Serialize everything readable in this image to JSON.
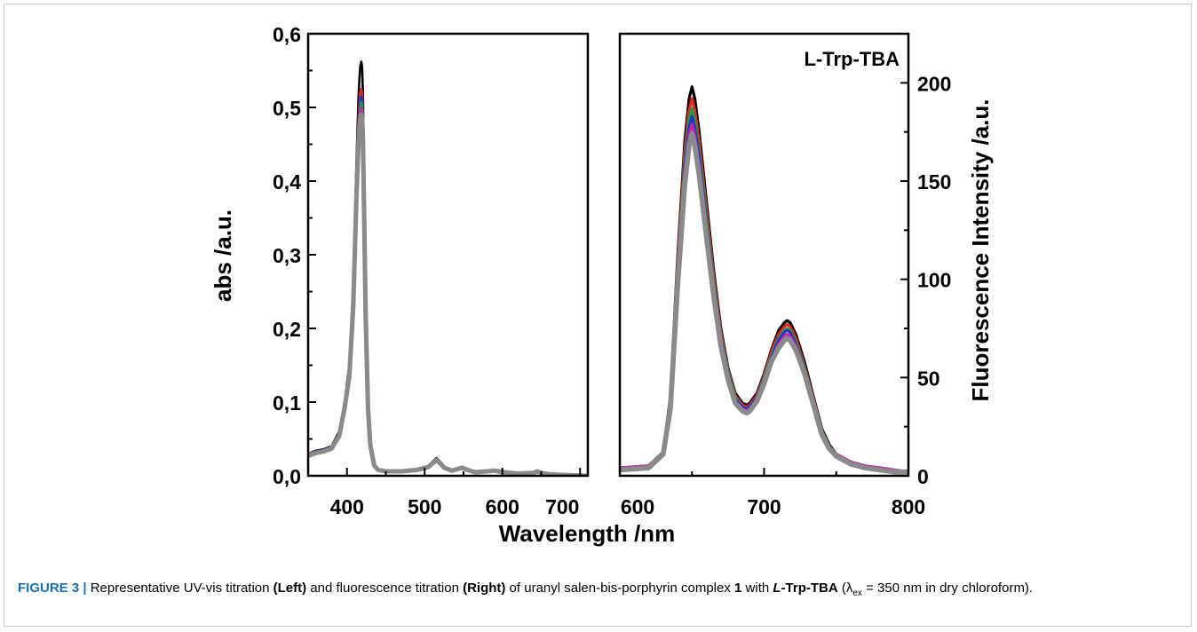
{
  "chart_data": [
    {
      "type": "line",
      "panel": "left",
      "xlabel": "Wavelength /nm",
      "ylabel": "abs /a.u.",
      "xlim": [
        350,
        710
      ],
      "ylim": [
        0,
        0.6
      ],
      "x_ticks": [
        "400",
        "500",
        "600",
        "700"
      ],
      "y_ticks": [
        "0,0",
        "0,1",
        "0,2",
        "0,3",
        "0,4",
        "0,5",
        "0,6"
      ],
      "grid": false,
      "series": [
        {
          "color": "#000000",
          "x": [
            350,
            360,
            370,
            380,
            390,
            397,
            403,
            408,
            412,
            415,
            417,
            418.5,
            419.5,
            420.5,
            422,
            424,
            427,
            430,
            435,
            440,
            450,
            470,
            490,
            505,
            510,
            515,
            520,
            525,
            535,
            542,
            548,
            555,
            565,
            580,
            590,
            600,
            620,
            640,
            645,
            650,
            660,
            680,
            710
          ],
          "y": [
            0.03,
            0.034,
            0.036,
            0.04,
            0.06,
            0.1,
            0.15,
            0.26,
            0.42,
            0.52,
            0.555,
            0.562,
            0.555,
            0.52,
            0.4,
            0.24,
            0.1,
            0.045,
            0.015,
            0.008,
            0.006,
            0.006,
            0.008,
            0.013,
            0.019,
            0.024,
            0.019,
            0.011,
            0.007,
            0.009,
            0.012,
            0.008,
            0.005,
            0.006,
            0.008,
            0.005,
            0.003,
            0.004,
            0.006,
            0.004,
            0.002,
            0.001,
            0.0
          ]
        },
        {
          "color": "#e8281e",
          "x": [
            350,
            360,
            370,
            380,
            390,
            397,
            403,
            408,
            412,
            415,
            417,
            418.5,
            419.5,
            420.5,
            422,
            424,
            427,
            430,
            435,
            440,
            450,
            470,
            490,
            505,
            510,
            515,
            520,
            525,
            535,
            542,
            548,
            555,
            565,
            580,
            590,
            600,
            620,
            640,
            645,
            650,
            660,
            680,
            710
          ],
          "y": [
            0.03,
            0.033,
            0.035,
            0.039,
            0.058,
            0.097,
            0.145,
            0.25,
            0.4,
            0.49,
            0.518,
            0.525,
            0.518,
            0.49,
            0.38,
            0.23,
            0.097,
            0.044,
            0.015,
            0.008,
            0.006,
            0.006,
            0.008,
            0.013,
            0.019,
            0.023,
            0.018,
            0.011,
            0.007,
            0.009,
            0.012,
            0.008,
            0.005,
            0.006,
            0.008,
            0.005,
            0.003,
            0.004,
            0.006,
            0.004,
            0.002,
            0.001,
            0.0
          ]
        },
        {
          "color": "#2233cc",
          "x": [
            350,
            360,
            370,
            380,
            390,
            397,
            403,
            408,
            412,
            415,
            417,
            418.5,
            419.5,
            420.5,
            422,
            424,
            427,
            430,
            435,
            440,
            450,
            470,
            490,
            505,
            510,
            515,
            520,
            525,
            535,
            542,
            548,
            555,
            565,
            580,
            590,
            600,
            620,
            640,
            645,
            650,
            660,
            680,
            710
          ],
          "y": [
            0.029,
            0.033,
            0.035,
            0.039,
            0.057,
            0.096,
            0.143,
            0.245,
            0.395,
            0.48,
            0.508,
            0.515,
            0.508,
            0.48,
            0.375,
            0.225,
            0.096,
            0.044,
            0.015,
            0.008,
            0.006,
            0.006,
            0.008,
            0.013,
            0.018,
            0.023,
            0.018,
            0.011,
            0.007,
            0.009,
            0.011,
            0.008,
            0.005,
            0.006,
            0.008,
            0.005,
            0.003,
            0.004,
            0.006,
            0.004,
            0.002,
            0.001,
            0.0
          ]
        },
        {
          "color": "#1e9e3c",
          "x": [
            350,
            360,
            370,
            380,
            390,
            397,
            403,
            408,
            412,
            415,
            417,
            418.5,
            419.5,
            420.5,
            422,
            424,
            427,
            430,
            435,
            440,
            450,
            470,
            490,
            505,
            510,
            515,
            520,
            525,
            535,
            542,
            548,
            555,
            565,
            580,
            590,
            600,
            620,
            640,
            645,
            650,
            660,
            680,
            710
          ],
          "y": [
            0.029,
            0.032,
            0.034,
            0.038,
            0.056,
            0.095,
            0.14,
            0.24,
            0.39,
            0.472,
            0.5,
            0.507,
            0.5,
            0.472,
            0.37,
            0.222,
            0.095,
            0.043,
            0.015,
            0.008,
            0.006,
            0.006,
            0.008,
            0.012,
            0.018,
            0.022,
            0.018,
            0.011,
            0.007,
            0.009,
            0.011,
            0.008,
            0.005,
            0.006,
            0.007,
            0.005,
            0.003,
            0.004,
            0.006,
            0.004,
            0.002,
            0.001,
            0.0
          ]
        },
        {
          "color": "#cc22aa",
          "x": [
            350,
            360,
            370,
            380,
            390,
            397,
            403,
            408,
            412,
            415,
            417,
            418.5,
            419.5,
            420.5,
            422,
            424,
            427,
            430,
            435,
            440,
            450,
            470,
            490,
            505,
            510,
            515,
            520,
            525,
            535,
            542,
            548,
            555,
            565,
            580,
            590,
            600,
            620,
            640,
            645,
            650,
            660,
            680,
            710
          ],
          "y": [
            0.028,
            0.032,
            0.034,
            0.038,
            0.055,
            0.094,
            0.138,
            0.235,
            0.382,
            0.465,
            0.492,
            0.499,
            0.492,
            0.465,
            0.365,
            0.22,
            0.094,
            0.043,
            0.015,
            0.008,
            0.006,
            0.006,
            0.008,
            0.012,
            0.018,
            0.022,
            0.018,
            0.011,
            0.007,
            0.009,
            0.011,
            0.008,
            0.005,
            0.006,
            0.007,
            0.005,
            0.003,
            0.004,
            0.006,
            0.004,
            0.002,
            0.001,
            0.0
          ]
        },
        {
          "color": "#8a8a8a",
          "x": [
            350,
            360,
            370,
            380,
            390,
            397,
            403,
            408,
            412,
            415,
            417,
            418.5,
            419.5,
            420.5,
            422,
            424,
            427,
            430,
            435,
            440,
            450,
            470,
            490,
            505,
            510,
            515,
            520,
            525,
            535,
            542,
            548,
            555,
            565,
            580,
            590,
            600,
            620,
            640,
            645,
            650,
            660,
            680,
            710
          ],
          "y": [
            0.027,
            0.031,
            0.033,
            0.037,
            0.054,
            0.092,
            0.135,
            0.23,
            0.375,
            0.458,
            0.485,
            0.49,
            0.485,
            0.458,
            0.36,
            0.218,
            0.092,
            0.042,
            0.014,
            0.008,
            0.006,
            0.006,
            0.008,
            0.012,
            0.017,
            0.021,
            0.017,
            0.011,
            0.007,
            0.009,
            0.011,
            0.008,
            0.005,
            0.006,
            0.007,
            0.005,
            0.003,
            0.004,
            0.006,
            0.004,
            0.002,
            0.001,
            0.0
          ]
        }
      ]
    },
    {
      "type": "line",
      "panel": "right",
      "xlabel": "Wavelength /nm",
      "ylabel": "Fluorescence Intensity /a.u.",
      "xlim": [
        600,
        800
      ],
      "ylim": [
        0,
        225
      ],
      "x_ticks": [
        "600",
        "700",
        "800"
      ],
      "y_ticks": [
        "0",
        "50",
        "100",
        "150",
        "200"
      ],
      "grid": false,
      "annotation": "L-Trp-TBA",
      "series": [
        {
          "color": "#000000",
          "x": [
            600,
            620,
            630,
            635,
            640,
            645,
            648,
            650,
            652,
            655,
            660,
            665,
            670,
            675,
            680,
            685,
            688,
            690,
            695,
            700,
            705,
            710,
            714,
            716,
            718,
            722,
            728,
            735,
            740,
            745,
            750,
            760,
            770,
            780,
            790,
            800
          ],
          "y": [
            4,
            5,
            12,
            40,
            110,
            170,
            192,
            198,
            192,
            175,
            140,
            105,
            75,
            55,
            42,
            37,
            36,
            37,
            42,
            52,
            64,
            74,
            78,
            79,
            78,
            72,
            58,
            38,
            24,
            16,
            11,
            7,
            5,
            4,
            3,
            2
          ]
        },
        {
          "color": "#e8281e",
          "x": [
            600,
            620,
            630,
            635,
            640,
            645,
            648,
            650,
            652,
            655,
            660,
            665,
            670,
            675,
            680,
            685,
            688,
            690,
            695,
            700,
            705,
            710,
            714,
            716,
            718,
            722,
            728,
            735,
            740,
            745,
            750,
            760,
            770,
            780,
            790,
            800
          ],
          "y": [
            4,
            5,
            12,
            39,
            107,
            165,
            186,
            192,
            186,
            170,
            136,
            102,
            73,
            54,
            41,
            36,
            35,
            36,
            41,
            51,
            63,
            72,
            76,
            77,
            76,
            70,
            56,
            37,
            23,
            15,
            11,
            7,
            5,
            4,
            3,
            2
          ]
        },
        {
          "color": "#1e9e3c",
          "x": [
            600,
            620,
            630,
            635,
            640,
            645,
            648,
            650,
            652,
            655,
            660,
            665,
            670,
            675,
            680,
            685,
            688,
            690,
            695,
            700,
            705,
            710,
            714,
            716,
            718,
            722,
            728,
            735,
            740,
            745,
            750,
            760,
            770,
            780,
            790,
            800
          ],
          "y": [
            4,
            5,
            12,
            38,
            104,
            160,
            181,
            187,
            181,
            165,
            132,
            99,
            71,
            53,
            40,
            35,
            34,
            35,
            40,
            50,
            61,
            70,
            74,
            75,
            74,
            68,
            55,
            36,
            23,
            15,
            11,
            7,
            5,
            4,
            3,
            2
          ]
        },
        {
          "color": "#2233cc",
          "x": [
            600,
            620,
            630,
            635,
            640,
            645,
            648,
            650,
            652,
            655,
            660,
            665,
            670,
            675,
            680,
            685,
            688,
            690,
            695,
            700,
            705,
            710,
            714,
            716,
            718,
            722,
            728,
            735,
            740,
            745,
            750,
            760,
            770,
            780,
            790,
            800
          ],
          "y": [
            4,
            5,
            12,
            37,
            102,
            157,
            177,
            183,
            177,
            162,
            129,
            97,
            70,
            52,
            39,
            35,
            34,
            35,
            40,
            49,
            60,
            69,
            73,
            74,
            73,
            67,
            54,
            36,
            22,
            15,
            11,
            7,
            5,
            4,
            3,
            2
          ]
        },
        {
          "color": "#cc22aa",
          "x": [
            600,
            620,
            630,
            635,
            640,
            645,
            648,
            650,
            652,
            655,
            660,
            665,
            670,
            675,
            680,
            685,
            688,
            690,
            695,
            700,
            705,
            710,
            714,
            716,
            718,
            722,
            728,
            735,
            740,
            745,
            750,
            760,
            770,
            780,
            790,
            800
          ],
          "y": [
            4,
            5,
            12,
            36,
            99,
            153,
            173,
            179,
            173,
            158,
            126,
            95,
            68,
            51,
            38,
            34,
            33,
            34,
            39,
            48,
            59,
            67,
            71,
            72,
            71,
            66,
            53,
            35,
            22,
            15,
            11,
            7,
            5,
            4,
            3,
            2
          ]
        },
        {
          "color": "#8a8a8a",
          "x": [
            600,
            620,
            630,
            635,
            640,
            645,
            648,
            650,
            652,
            655,
            660,
            665,
            670,
            675,
            680,
            685,
            688,
            690,
            695,
            700,
            705,
            710,
            714,
            716,
            718,
            722,
            728,
            735,
            740,
            745,
            750,
            760,
            770,
            780,
            790,
            800
          ],
          "y": [
            3,
            4,
            11,
            34,
            96,
            148,
            168,
            174,
            168,
            153,
            122,
            92,
            66,
            49,
            37,
            33,
            32,
            33,
            38,
            47,
            58,
            65,
            69,
            70,
            69,
            64,
            52,
            34,
            21,
            14,
            10,
            6,
            4,
            3,
            2,
            2
          ]
        }
      ]
    }
  ],
  "figure": {
    "xlabel": "Wavelength /nm"
  },
  "caption": {
    "label": "FIGURE 3 |",
    "t1": " Representative UV-vis titration ",
    "b1": "(Left)",
    "t2": " and fluorescence titration ",
    "b2": "(Right)",
    "t3": " of uranyl salen-bis-porphyrin complex ",
    "b3": "1",
    "t4": " with ",
    "b4_italic": "L",
    "b4_rest": "-Trp-TBA",
    "t5": " (λ",
    "sub": "ex",
    "t6": " = 350 nm in dry chloroform)."
  }
}
